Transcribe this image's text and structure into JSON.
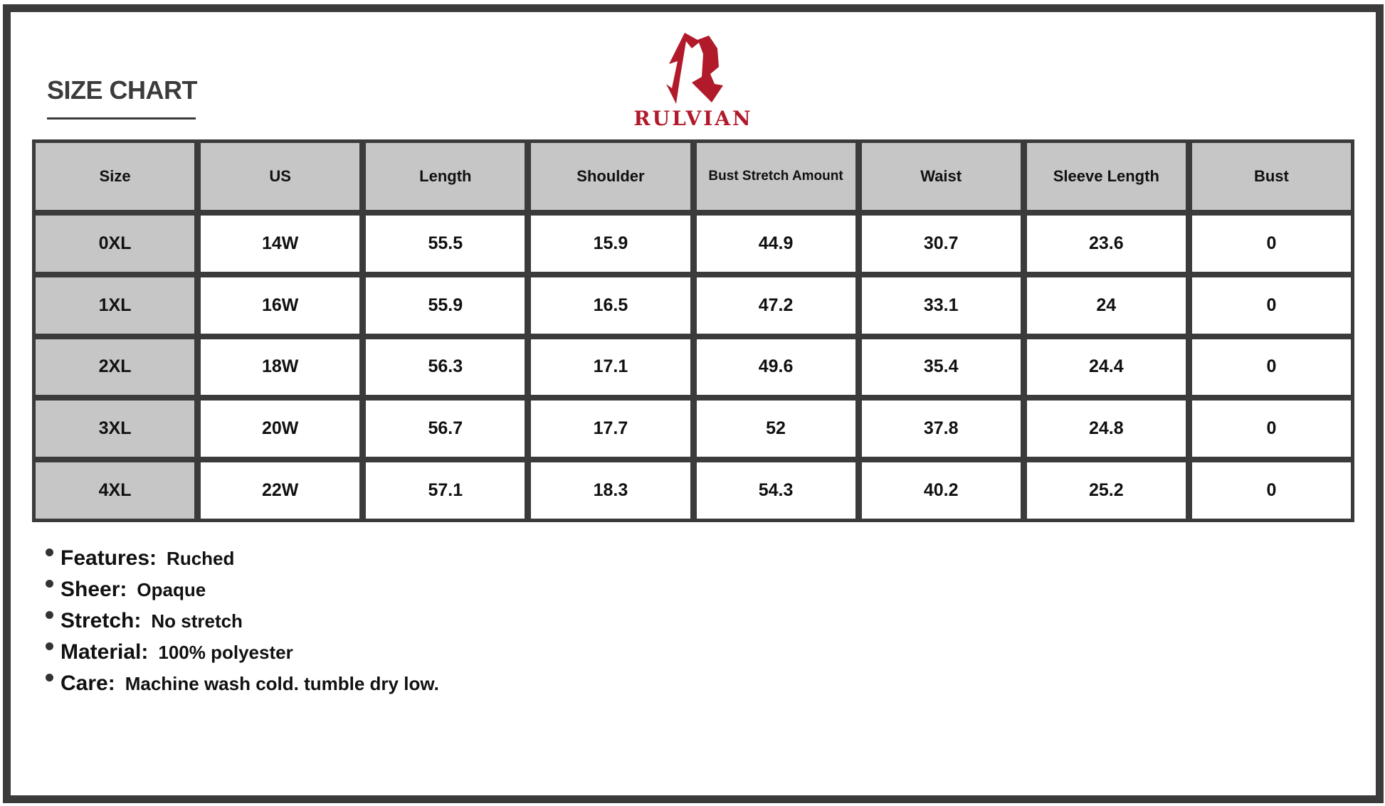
{
  "title": "SIZE CHART",
  "brand": {
    "name": "RULVIAN",
    "color": "#b01a2a"
  },
  "table": {
    "headers": [
      "Size",
      "US",
      "Length",
      "Shoulder",
      "Bust Stretch Amount",
      "Waist",
      "Sleeve Length",
      "Bust"
    ],
    "rows": [
      [
        "0XL",
        "14W",
        "55.5",
        "15.9",
        "44.9",
        "30.7",
        "23.6",
        "0"
      ],
      [
        "1XL",
        "16W",
        "55.9",
        "16.5",
        "47.2",
        "33.1",
        "24",
        "0"
      ],
      [
        "2XL",
        "18W",
        "56.3",
        "17.1",
        "49.6",
        "35.4",
        "24.4",
        "0"
      ],
      [
        "3XL",
        "20W",
        "56.7",
        "17.7",
        "52",
        "37.8",
        "24.8",
        "0"
      ],
      [
        "4XL",
        "22W",
        "57.1",
        "18.3",
        "54.3",
        "40.2",
        "25.2",
        "0"
      ]
    ]
  },
  "features": [
    {
      "label": "Features:",
      "value": "Ruched"
    },
    {
      "label": "Sheer:",
      "value": "Opaque"
    },
    {
      "label": "Stretch:",
      "value": "No stretch"
    },
    {
      "label": "Material:",
      "value": "100% polyester"
    },
    {
      "label": "Care:",
      "value": "Machine wash cold. tumble dry low."
    }
  ]
}
